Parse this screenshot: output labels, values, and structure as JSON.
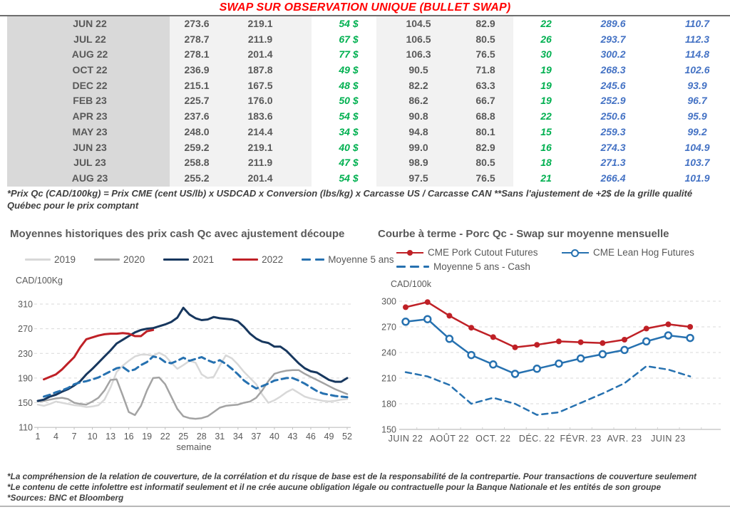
{
  "title": "SWAP SUR OBSERVATION UNIQUE (BULLET SWAP)",
  "table": {
    "rows": [
      [
        "JUN 22",
        "273.6",
        "219.1",
        "54 $",
        "104.5",
        "82.9",
        "22",
        "289.6",
        "110.7"
      ],
      [
        "JUL 22",
        "278.7",
        "211.9",
        "67 $",
        "106.5",
        "80.5",
        "26",
        "293.7",
        "112.3"
      ],
      [
        "AUG 22",
        "278.1",
        "201.4",
        "77 $",
        "106.3",
        "76.5",
        "30",
        "300.2",
        "114.8"
      ],
      [
        "OCT 22",
        "236.9",
        "187.8",
        "49 $",
        "90.5",
        "71.8",
        "19",
        "268.3",
        "102.6"
      ],
      [
        "DEC 22",
        "215.1",
        "167.5",
        "48 $",
        "82.2",
        "63.3",
        "19",
        "245.6",
        "93.9"
      ],
      [
        "FEB 23",
        "225.7",
        "176.0",
        "50 $",
        "86.2",
        "66.7",
        "19",
        "252.9",
        "96.7"
      ],
      [
        "APR 23",
        "237.6",
        "183.6",
        "54 $",
        "90.8",
        "68.8",
        "22",
        "250.6",
        "95.9"
      ],
      [
        "MAY 23",
        "248.0",
        "214.4",
        "34 $",
        "94.8",
        "80.1",
        "15",
        "259.3",
        "99.2"
      ],
      [
        "JUN 23",
        "259.2",
        "219.1",
        "40 $",
        "99.0",
        "82.9",
        "16",
        "274.3",
        "104.9"
      ],
      [
        "JUL 23",
        "258.8",
        "211.9",
        "47 $",
        "98.9",
        "80.5",
        "18",
        "271.3",
        "103.7"
      ],
      [
        "AUG 23",
        "255.2",
        "201.4",
        "54 $",
        "97.5",
        "76.5",
        "21",
        "266.4",
        "101.9"
      ]
    ]
  },
  "footnote": "*Prix Qc (CAD/100kg) = Prix CME (cent US/lb) x USDCAD x Conversion (lbs/kg) x Carcasse US / Carcasse CAN **Sans l'ajustement de +2$ de la grille qualité Québec pour le prix comptant",
  "chart_data": [
    {
      "type": "line",
      "title": "Moyennes historiques des prix cash Qc avec ajustement découpe",
      "ylabel": "CAD/100Kg",
      "xlabel": "semaine",
      "ylim": [
        110,
        310
      ],
      "yticks": [
        110,
        150,
        190,
        230,
        270,
        310
      ],
      "x_ticks": [
        1,
        4,
        7,
        10,
        13,
        16,
        19,
        22,
        25,
        28,
        31,
        34,
        37,
        40,
        43,
        46,
        49,
        52
      ],
      "grid": "dashed-horizontal",
      "legend_position": "top",
      "series": [
        {
          "name": "2019",
          "color": "#d8d8d8",
          "style": "solid",
          "width": 2.5,
          "start_week": 1,
          "values": [
            147,
            145,
            148,
            152,
            150,
            148,
            146,
            145,
            143,
            144,
            146,
            155,
            175,
            200,
            210,
            218,
            225,
            228,
            228,
            226,
            231,
            226,
            215,
            205,
            211,
            218,
            215,
            196,
            190,
            192,
            210,
            227,
            222,
            212,
            200,
            190,
            180,
            163,
            150,
            154,
            160,
            167,
            172,
            166,
            160,
            157,
            155,
            153,
            152,
            153,
            155,
            156
          ]
        },
        {
          "name": "2020",
          "color": "#a3a3a3",
          "style": "solid",
          "width": 2.5,
          "start_week": 1,
          "values": [
            152,
            153,
            155,
            157,
            158,
            156,
            150,
            148,
            147,
            152,
            158,
            170,
            187,
            188,
            162,
            135,
            130,
            145,
            170,
            190,
            191,
            180,
            160,
            140,
            128,
            125,
            124,
            125,
            128,
            135,
            142,
            145,
            146,
            147,
            150,
            152,
            158,
            170,
            185,
            197,
            200,
            202,
            203,
            203,
            197,
            192,
            187,
            182,
            177,
            172,
            168,
            164
          ]
        },
        {
          "name": "2021",
          "color": "#17375e",
          "style": "solid",
          "width": 3,
          "start_week": 1,
          "values": [
            153,
            155,
            160,
            163,
            168,
            172,
            178,
            185,
            196,
            205,
            215,
            225,
            235,
            246,
            252,
            258,
            264,
            268,
            270,
            271,
            274,
            277,
            281,
            288,
            304,
            293,
            287,
            284,
            285,
            289,
            287,
            286,
            285,
            282,
            273,
            262,
            254,
            249,
            247,
            241,
            241,
            234,
            224,
            214,
            206,
            201,
            199,
            193,
            187,
            184,
            184,
            190
          ]
        },
        {
          "name": "2022",
          "color": "#bf2026",
          "style": "solid",
          "width": 3,
          "start_week": 2,
          "values": [
            188,
            192,
            196,
            204,
            214,
            224,
            240,
            253,
            256,
            259,
            261,
            262,
            262,
            263,
            262,
            258,
            258,
            266,
            268
          ]
        },
        {
          "name": "Moyenne 5 ans",
          "color": "#2671b0",
          "style": "dashed",
          "width": 3,
          "start_week": 2,
          "values": [
            160,
            163,
            167,
            170,
            174,
            180,
            183,
            185,
            188,
            191,
            196,
            201,
            206,
            208,
            201,
            204,
            211,
            216,
            225,
            223,
            216,
            214,
            218,
            223,
            218,
            221,
            224,
            219,
            215,
            219,
            213,
            205,
            196,
            186,
            179,
            173,
            177,
            181,
            186,
            188,
            190,
            190,
            186,
            181,
            175,
            169,
            165,
            163,
            161,
            160,
            159
          ]
        }
      ]
    },
    {
      "type": "line",
      "title": "Courbe à terme - Porc Qc - Swap sur moyenne mensuelle",
      "ylabel": "CAD/100k",
      "xlabel": "",
      "ylim": [
        150,
        300
      ],
      "yticks": [
        150,
        180,
        210,
        240,
        270,
        300
      ],
      "x_labels": [
        "JUIN 22",
        "AOÛT 22",
        "OCT. 22",
        "DÉC. 22",
        "FÉVR. 23",
        "AVR. 23",
        "JUIN 23"
      ],
      "months_count": 14,
      "grid": "dashed-horizontal",
      "legend_position": "top",
      "series": [
        {
          "name": "CME Pork Cutout Futures",
          "color": "#bf2026",
          "style": "solid",
          "width": 2.5,
          "marker": "filled-circle",
          "values": [
            293,
            299,
            283,
            269,
            258,
            246,
            249,
            253,
            252,
            251,
            255,
            268,
            273,
            270
          ]
        },
        {
          "name": "CME Lean Hog Futures",
          "color": "#2671b0",
          "style": "solid",
          "width": 2.5,
          "marker": "open-circle",
          "values": [
            276,
            279,
            256,
            237,
            226,
            215,
            221,
            227,
            233,
            238,
            243,
            253,
            260,
            257
          ]
        },
        {
          "name": "Moyenne 5 ans - Cash",
          "color": "#2671b0",
          "style": "dashed",
          "width": 2.5,
          "values": [
            217,
            212,
            202,
            180,
            187,
            180,
            167,
            170,
            181,
            192,
            204,
            224,
            220,
            212
          ]
        }
      ]
    }
  ],
  "footer": {
    "lines": [
      "*La compréhension de la relation de couverture, de la corrélation et du risque de base est de la responsabilité de la contrepartie. Pour transactions de couverture seulement",
      "*Le contenu de cette infolettre est informatif seulement et il ne crée aucune obligation légale ou contractuelle pour la Banque Nationale et les entités de son groupe",
      "*Sources: BNC et Bloomberg"
    ]
  },
  "colors": {
    "title_red": "#ff0000",
    "table_green": "#00b050",
    "table_blue": "#4472c4",
    "text_gray": "#595959",
    "series_2021_navy": "#17375e",
    "series_2022_red": "#bf2026",
    "series_avg_blue": "#2671b0",
    "grid_gray": "#d9d9d9"
  }
}
